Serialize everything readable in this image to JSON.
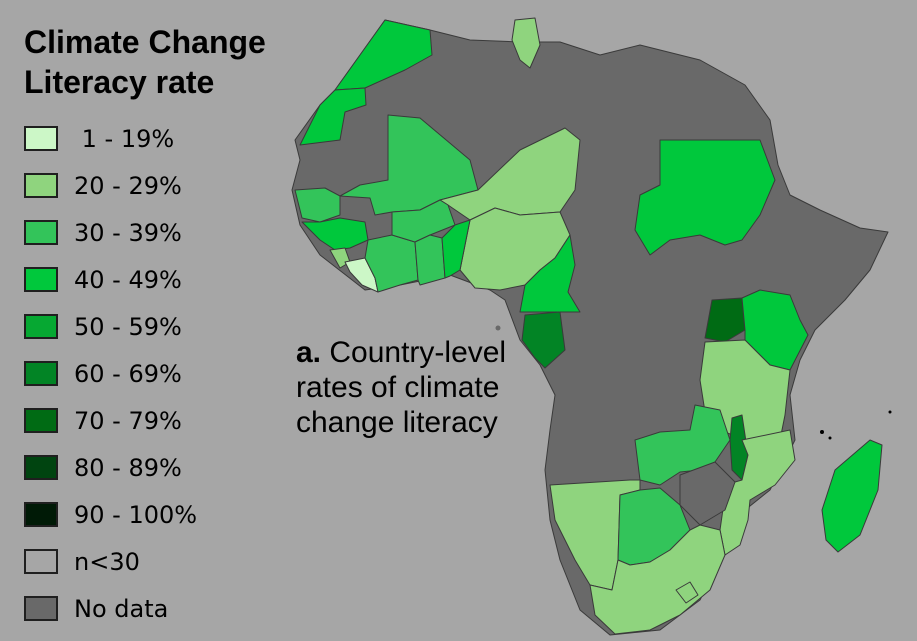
{
  "legend": {
    "title_line1": "Climate Change",
    "title_line2": "Literacy rate",
    "items": [
      {
        "label": " 1 - 19%",
        "color": "#ccf7c7"
      },
      {
        "label": "20 - 29%",
        "color": "#8fd47e"
      },
      {
        "label": "30 - 39%",
        "color": "#33c45a"
      },
      {
        "label": "40 - 49%",
        "color": "#00c83c"
      },
      {
        "label": "50 - 59%",
        "color": "#06a832"
      },
      {
        "label": "60 - 69%",
        "color": "#028425"
      },
      {
        "label": "70 - 79%",
        "color": "#006b14"
      },
      {
        "label": "80 - 89%",
        "color": "#004410"
      },
      {
        "label": "90 - 100%",
        "color": "#001a06"
      },
      {
        "label": "n<30",
        "color": "#a6a6a6"
      },
      {
        "label": "No data",
        "color": "#696969"
      }
    ]
  },
  "caption": {
    "letter": "a.",
    "text": " Country-level rates of climate change literacy"
  },
  "colors": {
    "background": "#a6a6a6",
    "no_data": "#696969",
    "border": "#3a3a3a"
  }
}
